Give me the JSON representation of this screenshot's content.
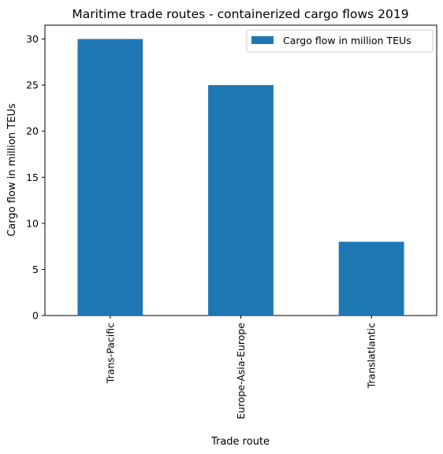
{
  "chart_data": {
    "type": "bar",
    "title": "Maritime trade routes - containerized cargo flows 2019",
    "xlabel": "Trade route",
    "ylabel": "Cargo flow in million TEUs",
    "categories": [
      "Trans-Pacific",
      "Europe-Asia-Europe",
      "Translatlantic"
    ],
    "series": [
      {
        "name": "Cargo flow in million TEUs",
        "values": [
          30,
          25,
          8
        ],
        "color": "#1f77b4"
      }
    ],
    "ylim": [
      0,
      31.5
    ],
    "yticks": [
      0,
      5,
      10,
      15,
      20,
      25,
      30
    ],
    "grid": false,
    "legend_position": "top-right"
  }
}
